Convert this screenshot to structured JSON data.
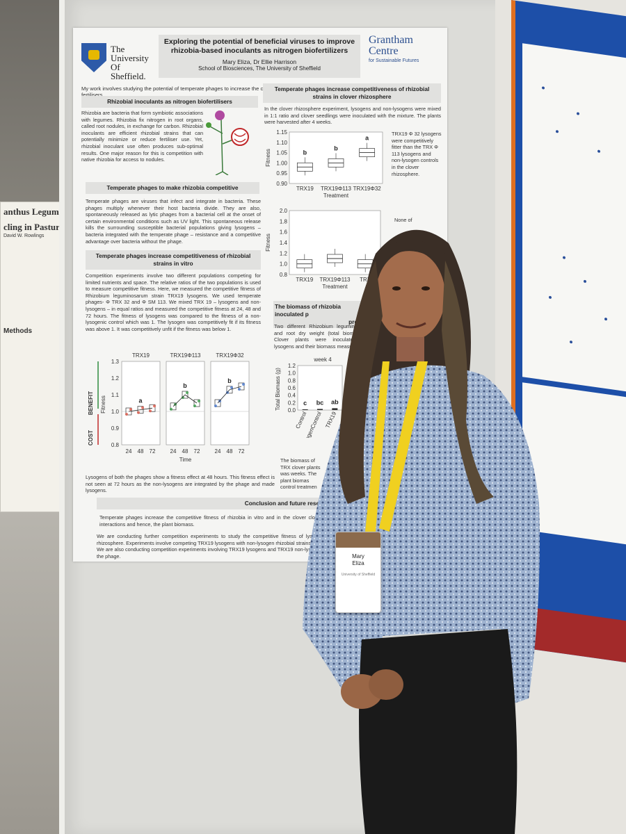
{
  "poster": {
    "university": [
      "The",
      "University",
      "Of",
      "Sheffield."
    ],
    "title_line1": "Exploring the potential of  beneficial viruses to improve",
    "title_line2": "rhizobia-based inoculants as nitrogen biofertilizers",
    "authors": "Mary Eliza, Dr Ellie Harrison",
    "school": "School of Biosciences, The University of Sheffield",
    "partner_line1": "Grantham",
    "partner_line2": "Centre",
    "partner_sub": "for Sustainable Futures",
    "intro": "My work involves studying the potential of temperate phages to increase the competitiveness of rhizobial inoculants, also called rhizobia-based bio fertilisers.",
    "sections": {
      "s1_title": "Rhizobial inoculants as nitrogen biofertilisers",
      "s1_text": "Rhizobia are bacteria that form symbiotic associations with legumes. Rhizobia fix nitrogen in root organs, called root nodules, in exchange for carbon. Rhizobial inoculants are efficient rhizobial strains that can potentially minimize or reduce fertiliser use. Yet, rhizobial inoculant use often produces sub-optimal results. One major reason for this is competition with native rhizobia for access to nodules.",
      "s2_title": "Temperate phages to make rhizobia competitive",
      "s2_text": "Temperate phages are viruses that infect and integrate in bacteria. These phages multiply whenever their host bacteria divide. They are also, spontaneously released as lytic phages from a bacterial cell at the onset of certain environmental conditions such as UV light. This spontaneous release kills the surrounding susceptible bacterial populations giving lysogens – bacteria integrated with the temperate phage – resistance and a competitive advantage over bacteria without the phage.",
      "s3_title": "Temperate phages increase competitiveness of rhizobial strains in vitro",
      "s3_text": "Competition experiments involve two different populations competing for limited nutrients and space. The relative ratios of the two populations is used to measure competitive fitness. Here, we measured the competitive fitness of Rhizobium leguminosarum strain TRX19 lysogens. We used temperate phages- Φ TRX 32 and Φ SM 113. We mixed TRX 19 – lysogens and non-lysogens – in equal ratios and measured the competitive fitness at 24, 48 and 72 hours. The fitness of lysogens was compared to the fitness of a non-lysogenic control which was 1. The lysogen was competitively fit if its fitness was above 1. It was competitively unfit if the fitness was below 1.",
      "s3_caption": "Lysogens of both the phages show a fitness effect at 48 hours. This fitness effect is not seen at 72 hours as the non-lysogens are integrated by the phage and made lysogens.",
      "s4_title": "Temperate phages increase competitiveness of rhizobial strains in clover rhizosphere",
      "s4_text": "In the clover rhizosphere experiment, lysogens and non-lysogens were mixed in 1:1 ratio and clover seedlings were inoculated with the mixture. The plants were harvested after 4 weeks.",
      "s4_side": "TRX19 Φ 32 lysogens were competitively fitter than the TRX Φ 113 lysogens and non-lysogen controls in the clover rhizosphere.",
      "s4_side2": "None of",
      "s5_title": "The biomass of rhizobia inoculated p",
      "s5_title2": "presenc",
      "s5_text": "Two different Rhizobium leguminosarum and root dry weight (total biomass) of Clover plants were inoculated with lysogens and their biomass measur",
      "s5_text2": "The biomass of TRX clover plants was weeks. The plant biomas control treatmen",
      "s6_title": "Conclusion and future resear",
      "s6_text1": "Temperate phages increase the competitive fitness of rhizobia in vitro and in the clover clover interactions and hence, the plant biomass.",
      "s6_text2": "We are conducting further competition experiments to study the competitive fitness of lysogen rhizosphere. Experiments involve competing TRX19 lysogens with non-lysogen rhizobial strains",
      "s6_text3": "We are also conducting competition experiments involving TRX19 lysogens and TRX19 non-lysog by the phage."
    }
  },
  "chart_data": [
    {
      "type": "box",
      "panels": [
        "TRX19",
        "TRX19Φ113",
        "TRX19Φ32"
      ],
      "x_ticks": [
        "24",
        "48",
        "72"
      ],
      "xlabel": "Time",
      "ylabel": "Fitness",
      "side_labels": [
        "BENEFIT",
        "COST"
      ],
      "ylim": [
        0.8,
        1.3
      ],
      "y_ticks": [
        "1.3",
        "1.2",
        "1.1",
        "1.0",
        "0.9",
        "0.8"
      ],
      "significance": [
        [
          "",
          "a",
          ""
        ],
        [
          "",
          "b",
          ""
        ],
        [
          "",
          "b",
          ""
        ]
      ],
      "medians": [
        [
          1.0,
          1.01,
          1.02
        ],
        [
          1.03,
          1.1,
          1.05
        ],
        [
          1.05,
          1.13,
          1.15
        ]
      ]
    },
    {
      "type": "box",
      "categories": [
        "TRX19",
        "TRX19Φ113",
        "TRX19Φ32"
      ],
      "xlabel": "Treatment",
      "ylabel": "Fitness",
      "ylim": [
        0.9,
        1.15
      ],
      "y_ticks": [
        "1.15",
        "1.10",
        "1.05",
        "1.00",
        "0.95",
        "0.90"
      ],
      "significance": [
        "b",
        "b",
        "a"
      ],
      "medians": [
        0.98,
        1.0,
        1.05
      ]
    },
    {
      "type": "box",
      "categories": [
        "TRX19",
        "TRX19Φ113",
        "TRX"
      ],
      "xlabel": "Treatment",
      "ylabel": "Fitness",
      "ylim": [
        0.8,
        2.0
      ],
      "y_ticks": [
        "2.0",
        "1.8",
        "1.6",
        "1.4",
        "1.2",
        "1.0",
        "0.8"
      ],
      "medians": [
        1.0,
        1.1,
        1.0
      ]
    },
    {
      "type": "bar",
      "title": "week 4",
      "categories": [
        "Control",
        "NitrogenControl",
        "TRX19"
      ],
      "ylabel": "Total Biomass (g)",
      "ylim": [
        0,
        1.2
      ],
      "y_ticks": [
        "1.2",
        "1.0",
        "0.8",
        "0.6",
        "0.4",
        "0.2",
        "0.0"
      ],
      "significance": [
        "c",
        "bc",
        "ab"
      ],
      "values": [
        0.02,
        0.03,
        0.05
      ]
    }
  ],
  "badge": {
    "name_line1": "Mary",
    "name_line2": "Eliza",
    "org": "University of Sheffield"
  },
  "side_poster": {
    "title_line1": "anthus Legum",
    "title_line2": "cling in Pastur",
    "authors": "David W. Rowlings",
    "methods": "Methods"
  }
}
